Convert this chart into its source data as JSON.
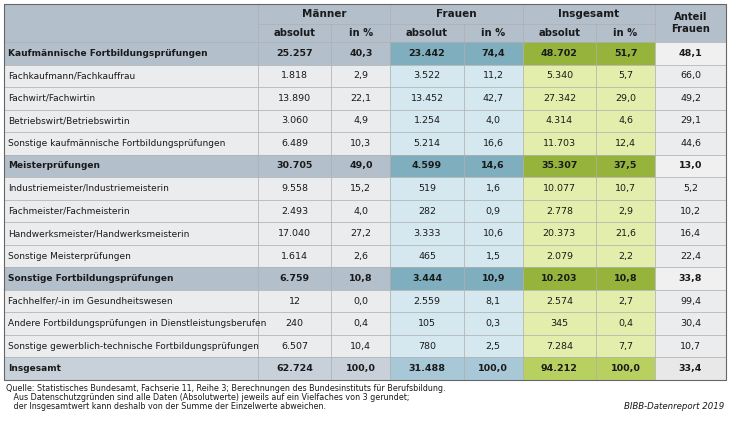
{
  "rows": [
    {
      "label": "Kaufmännische Fortbildungsprüfungen",
      "bold": true,
      "data": [
        "25.257",
        "40,3",
        "23.442",
        "74,4",
        "48.702",
        "51,7",
        "48,1"
      ],
      "row_style": "section"
    },
    {
      "label": "Fachkaufmann/Fachkauffrau",
      "bold": false,
      "data": [
        "1.818",
        "2,9",
        "3.522",
        "11,2",
        "5.340",
        "5,7",
        "66,0"
      ],
      "row_style": "normal"
    },
    {
      "label": "Fachwirt/Fachwirtin",
      "bold": false,
      "data": [
        "13.890",
        "22,1",
        "13.452",
        "42,7",
        "27.342",
        "29,0",
        "49,2"
      ],
      "row_style": "normal"
    },
    {
      "label": "Betriebswirt/Betriebswirtin",
      "bold": false,
      "data": [
        "3.060",
        "4,9",
        "1.254",
        "4,0",
        "4.314",
        "4,6",
        "29,1"
      ],
      "row_style": "normal"
    },
    {
      "label": "Sonstige kaufmännische Fortbildungsprüfungen",
      "bold": false,
      "data": [
        "6.489",
        "10,3",
        "5.214",
        "16,6",
        "11.703",
        "12,4",
        "44,6"
      ],
      "row_style": "normal"
    },
    {
      "label": "Meisterprüfungen",
      "bold": true,
      "data": [
        "30.705",
        "49,0",
        "4.599",
        "14,6",
        "35.307",
        "37,5",
        "13,0"
      ],
      "row_style": "section"
    },
    {
      "label": "Industriemeister/Industriemeisterin",
      "bold": false,
      "data": [
        "9.558",
        "15,2",
        "519",
        "1,6",
        "10.077",
        "10,7",
        "5,2"
      ],
      "row_style": "normal"
    },
    {
      "label": "Fachmeister/Fachmeisterin",
      "bold": false,
      "data": [
        "2.493",
        "4,0",
        "282",
        "0,9",
        "2.778",
        "2,9",
        "10,2"
      ],
      "row_style": "normal"
    },
    {
      "label": "Handwerksmeister/Handwerksmeisterin",
      "bold": false,
      "data": [
        "17.040",
        "27,2",
        "3.333",
        "10,6",
        "20.373",
        "21,6",
        "16,4"
      ],
      "row_style": "normal"
    },
    {
      "label": "Sonstige Meisterprüfungen",
      "bold": false,
      "data": [
        "1.614",
        "2,6",
        "465",
        "1,5",
        "2.079",
        "2,2",
        "22,4"
      ],
      "row_style": "normal"
    },
    {
      "label": "Sonstige Fortbildungsprüfungen",
      "bold": true,
      "data": [
        "6.759",
        "10,8",
        "3.444",
        "10,9",
        "10.203",
        "10,8",
        "33,8"
      ],
      "row_style": "section"
    },
    {
      "label": "Fachhelfer/-in im Gesundheitswesen",
      "bold": false,
      "data": [
        "12",
        "0,0",
        "2.559",
        "8,1",
        "2.574",
        "2,7",
        "99,4"
      ],
      "row_style": "normal"
    },
    {
      "label": "Andere Fortbildungsprüfungen in Dienstleistungsberufen",
      "bold": false,
      "data": [
        "240",
        "0,4",
        "105",
        "0,3",
        "345",
        "0,4",
        "30,4"
      ],
      "row_style": "normal"
    },
    {
      "label": "Sonstige gewerblich-technische Fortbildungsprüfungen",
      "bold": false,
      "data": [
        "6.507",
        "10,4",
        "780",
        "2,5",
        "7.284",
        "7,7",
        "10,7"
      ],
      "row_style": "normal"
    },
    {
      "label": "Insgesamt",
      "bold": true,
      "data": [
        "62.724",
        "100,0",
        "31.488",
        "100,0",
        "94.212",
        "100,0",
        "33,4"
      ],
      "row_style": "total"
    }
  ],
  "footer_line1": "Quelle: Statistisches Bundesamt, Fachserie 11, Reihe 3; Berechnungen des Bundesinstituts für Berufsbildung.",
  "footer_line2": "   Aus Datenschutzgründen sind alle Daten (Absolutwerte) jeweils auf ein Vielfaches von 3 gerundet;",
  "footer_line3": "   der Insgesamtwert kann deshalb von der Summe der Einzelwerte abweichen.",
  "bibb_label": "BIBB-Datenreport 2019",
  "col_widths_rel": [
    215,
    62,
    50,
    62,
    50,
    62,
    50,
    60
  ],
  "colors": {
    "header_bg": "#b4bfcc",
    "header_frauen_bg": "#7fafbe",
    "header_insgesamt_bg": "#96b43c",
    "col_maenner_bg": "#ffffff",
    "col_frauen_bg": "#c5dce8",
    "col_insgesamt_bg": "#d4e47e",
    "col_anteil_bg": "#f0f0f0",
    "section_label_bg": "#b4bfcc",
    "section_maenner_bg": "#b4bfcc",
    "section_frauen_bg": "#7fafbe",
    "section_insgesamt_bg": "#96b43c",
    "section_anteil_bg": "#f0f0f0",
    "total_label_bg": "#c8d0d9",
    "total_maenner_bg": "#c8d0d9",
    "total_frauen_bg": "#a8c8d8",
    "total_insgesamt_bg": "#b8d060",
    "total_anteil_bg": "#e8e8e8",
    "normal_label_bg": "#eaecee",
    "normal_maenner_bg": "#eaecee",
    "normal_frauen_bg": "#d5e8f0",
    "normal_insgesamt_bg": "#e4eeac",
    "normal_anteil_bg": "#eaecee",
    "border_color": "#aaaaaa",
    "text_color": "#1a1a1a"
  }
}
